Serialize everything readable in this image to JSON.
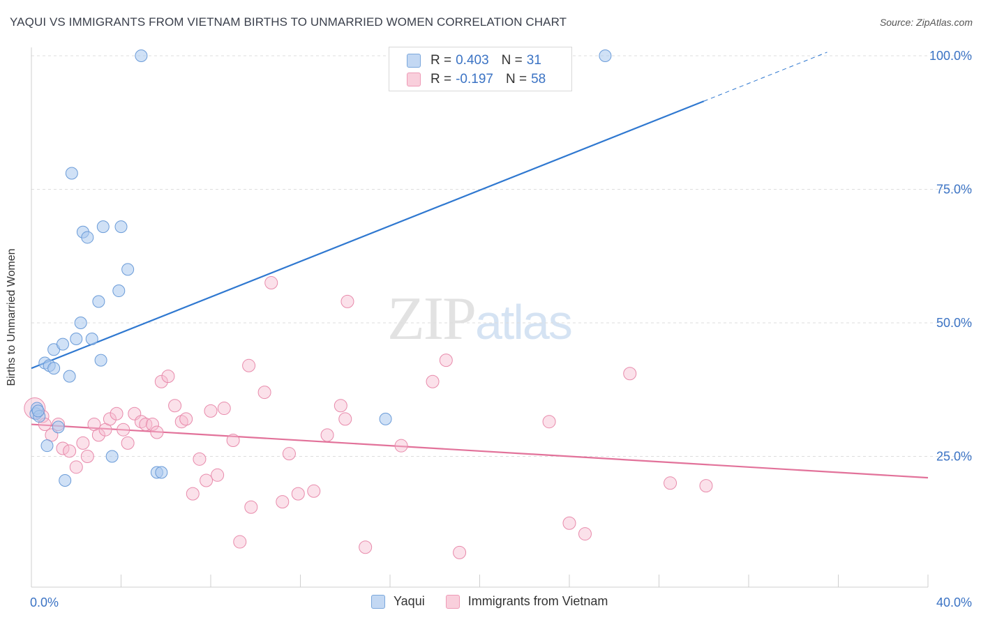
{
  "header": {
    "title": "YAQUI VS IMMIGRANTS FROM VIETNAM BIRTHS TO UNMARRIED WOMEN CORRELATION CHART",
    "source": "Source: ZipAtlas.com"
  },
  "watermark": {
    "zip": "ZIP",
    "atlas": "atlas"
  },
  "legend_top": {
    "rows": [
      {
        "r_label": "R = ",
        "r_value": "0.403",
        "n_label": "N = ",
        "n_value": "31"
      },
      {
        "r_label": "R = ",
        "r_value": "-0.197",
        "n_label": "N = ",
        "n_value": "58"
      }
    ]
  },
  "legend_bottom": {
    "series1": "Yaqui",
    "series2": "Immigrants from Vietnam"
  },
  "colors": {
    "blue_fill": "#a9c9ef",
    "blue_stroke": "#6a9bd8",
    "blue_line": "#2f78d0",
    "pink_fill": "#f6bcd0",
    "pink_stroke": "#e88aab",
    "pink_line": "#e2729a",
    "axis_text": "#3b73c4",
    "grid": "#dddddd"
  },
  "chart_data": {
    "type": "scatter",
    "title": "YAQUI VS IMMIGRANTS FROM VIETNAM BIRTHS TO UNMARRIED WOMEN CORRELATION CHART",
    "xlabel": "",
    "ylabel": "Births to Unmarried Women",
    "xlim": [
      0,
      40
    ],
    "ylim": [
      0,
      100
    ],
    "x_tick_labels": [
      "0.0%",
      "40.0%"
    ],
    "y_ticks": [
      25,
      50,
      75,
      100
    ],
    "y_tick_labels": [
      "25.0%",
      "50.0%",
      "75.0%",
      "100.0%"
    ],
    "grid": true,
    "legend": "top-center",
    "series": [
      {
        "name": "Yaqui",
        "R": 0.403,
        "N": 31,
        "trend": {
          "x0": 0,
          "y0": 41.5,
          "x1": 30,
          "y1": 91.5,
          "dashed_to_x": 35.5
        },
        "points": [
          [
            0.2,
            33
          ],
          [
            0.25,
            34
          ],
          [
            0.35,
            32.5
          ],
          [
            0.6,
            42.5
          ],
          [
            0.7,
            27
          ],
          [
            0.8,
            42
          ],
          [
            1.0,
            41.5
          ],
          [
            1.0,
            45
          ],
          [
            1.2,
            30.5
          ],
          [
            1.4,
            46
          ],
          [
            1.5,
            20.5
          ],
          [
            1.7,
            40
          ],
          [
            1.8,
            78
          ],
          [
            2.0,
            47
          ],
          [
            2.2,
            50
          ],
          [
            2.3,
            67
          ],
          [
            2.5,
            66
          ],
          [
            2.7,
            47
          ],
          [
            3.0,
            54
          ],
          [
            3.1,
            43
          ],
          [
            3.2,
            68
          ],
          [
            3.6,
            25
          ],
          [
            3.9,
            56
          ],
          [
            4.0,
            68
          ],
          [
            4.3,
            60
          ],
          [
            4.9,
            100
          ],
          [
            5.6,
            22
          ],
          [
            5.8,
            22
          ],
          [
            15.8,
            32
          ],
          [
            25.6,
            100
          ],
          [
            0.3,
            33.5
          ]
        ]
      },
      {
        "name": "Immigrants from Vietnam",
        "R": -0.197,
        "N": 58,
        "trend": {
          "x0": 0,
          "y0": 31,
          "x1": 40,
          "y1": 21
        },
        "points": [
          [
            0.15,
            34
          ],
          [
            0.5,
            32.5
          ],
          [
            0.6,
            31
          ],
          [
            0.9,
            29
          ],
          [
            1.2,
            31
          ],
          [
            1.4,
            26.5
          ],
          [
            1.7,
            26
          ],
          [
            2.0,
            23
          ],
          [
            2.3,
            27.5
          ],
          [
            2.5,
            25
          ],
          [
            2.8,
            31
          ],
          [
            3.0,
            29
          ],
          [
            3.3,
            30
          ],
          [
            3.5,
            32
          ],
          [
            3.8,
            33
          ],
          [
            4.1,
            30
          ],
          [
            4.3,
            27.5
          ],
          [
            4.6,
            33
          ],
          [
            4.9,
            31.5
          ],
          [
            5.1,
            31
          ],
          [
            5.4,
            31
          ],
          [
            5.6,
            29.5
          ],
          [
            5.8,
            39
          ],
          [
            6.1,
            40
          ],
          [
            6.4,
            34.5
          ],
          [
            6.7,
            31.5
          ],
          [
            6.9,
            32
          ],
          [
            7.2,
            18
          ],
          [
            7.5,
            24.5
          ],
          [
            7.8,
            20.5
          ],
          [
            8.0,
            33.5
          ],
          [
            8.3,
            21.5
          ],
          [
            8.6,
            34
          ],
          [
            9.0,
            28
          ],
          [
            9.3,
            9
          ],
          [
            9.7,
            42
          ],
          [
            9.8,
            15.5
          ],
          [
            10.4,
            37
          ],
          [
            10.7,
            57.5
          ],
          [
            11.2,
            16.5
          ],
          [
            11.5,
            25.5
          ],
          [
            11.9,
            18
          ],
          [
            12.6,
            18.5
          ],
          [
            13.2,
            29
          ],
          [
            13.8,
            34.5
          ],
          [
            14.0,
            32
          ],
          [
            14.1,
            54
          ],
          [
            14.9,
            8
          ],
          [
            16.5,
            27
          ],
          [
            17.9,
            39
          ],
          [
            18.5,
            43
          ],
          [
            19.1,
            7
          ],
          [
            23.1,
            31.5
          ],
          [
            24.0,
            12.5
          ],
          [
            24.7,
            10.5
          ],
          [
            26.7,
            40.5
          ],
          [
            28.5,
            20
          ],
          [
            30.1,
            19.5
          ]
        ]
      }
    ]
  }
}
